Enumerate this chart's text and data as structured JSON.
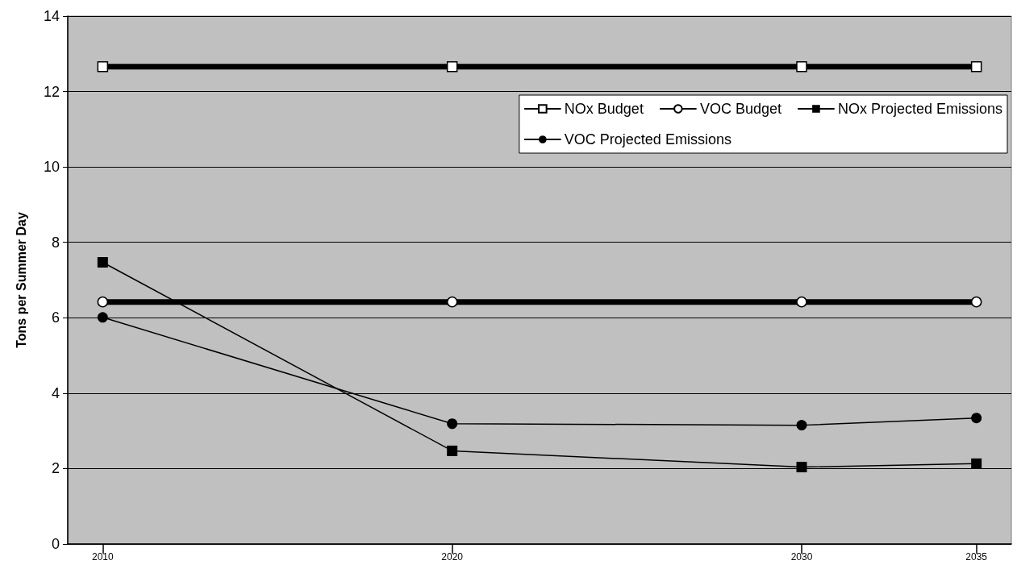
{
  "chart_data": {
    "type": "line",
    "ylabel": "Tons per Summer Day",
    "x": [
      2010,
      2020,
      2030,
      2035
    ],
    "xlim": [
      2009,
      2036
    ],
    "xticks": [
      2010,
      2020,
      2030,
      2035
    ],
    "ylim": [
      0,
      14
    ],
    "yticks": [
      0,
      2,
      4,
      6,
      8,
      10,
      12,
      14
    ],
    "grid": "y",
    "legend": "top right",
    "series": [
      {
        "name": "NOx Budget",
        "color": "#000000",
        "marker": "square",
        "values": [
          12.66,
          12.66,
          12.66,
          12.66
        ]
      },
      {
        "name": "VOC Budget",
        "color": "#000000",
        "marker": "circle",
        "values": [
          6.42,
          6.42,
          6.42,
          6.42
        ]
      },
      {
        "name": "NOx Projected Emissions",
        "color": "#000000",
        "marker": "square",
        "values": [
          7.47,
          2.47,
          2.04,
          2.13
        ]
      },
      {
        "name": "VOC Projected Emissions",
        "color": "#000000",
        "marker": "circle",
        "values": [
          6.01,
          3.19,
          3.15,
          3.34
        ]
      }
    ]
  }
}
